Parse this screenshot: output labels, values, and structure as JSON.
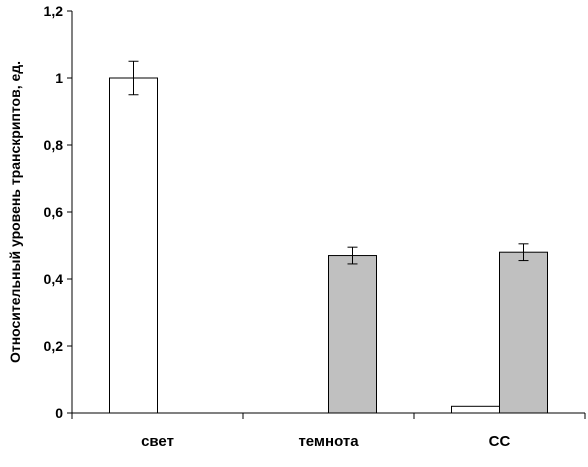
{
  "chart_data": {
    "type": "bar",
    "title": "",
    "xlabel": "",
    "ylabel": "Относительный уровень транскриптов, ед.",
    "ylim": [
      0,
      1.2
    ],
    "yticks": [
      0,
      0.2,
      0.4,
      0.6,
      0.8,
      1,
      1.2
    ],
    "ytick_labels": [
      "0",
      "0,2",
      "0,4",
      "0,6",
      "0,8",
      "1",
      "1,2"
    ],
    "categories": [
      "свет",
      "темнота",
      "СС"
    ],
    "series": [
      {
        "values": [
          1.0,
          null,
          0.02
        ],
        "errors": [
          0.05,
          null,
          null
        ],
        "color": "#ffffff"
      },
      {
        "values": [
          null,
          0.47,
          0.48
        ],
        "errors": [
          null,
          0.025,
          0.025
        ],
        "color": "#c0c0c0"
      }
    ],
    "grid": false,
    "legend": "none"
  }
}
